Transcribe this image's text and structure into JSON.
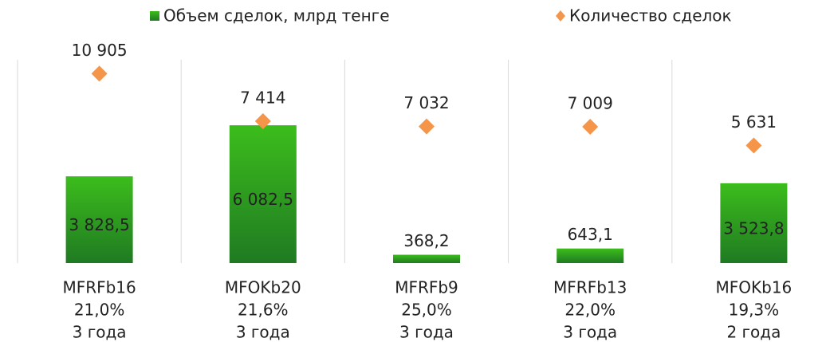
{
  "chart_data": {
    "type": "bar",
    "categories": [
      [
        "MFRFb16",
        "21,0%",
        "3 года"
      ],
      [
        "MFOKb20",
        "21,6%",
        "3 года"
      ],
      [
        "MFRFb9",
        "25,0%",
        "3 года"
      ],
      [
        "MFRFb13",
        "22,0%",
        "3 года"
      ],
      [
        "MFOKb16",
        "19,3%",
        "2 года"
      ]
    ],
    "series": [
      {
        "name": "Объем сделок, млрд тенге",
        "type": "bar",
        "color": "#2e9e1e",
        "values": [
          3828.5,
          6082.5,
          368.2,
          643.1,
          3523.8
        ],
        "value_labels": [
          "3 828,5",
          "6 082,5",
          "368,2",
          "643,1",
          "3 523,8"
        ]
      },
      {
        "name": "Количество сделок",
        "type": "scatter",
        "color": "#f4954a",
        "axis": "y2",
        "values": [
          10905,
          7414,
          7032,
          7009,
          5631
        ],
        "value_labels": [
          "10 905",
          "7 414",
          "7 032",
          "7 009",
          "5 631"
        ]
      }
    ],
    "ylim": [
      0,
      9500
    ],
    "y2lim": [
      -3000,
      12800
    ],
    "legend": "top"
  }
}
